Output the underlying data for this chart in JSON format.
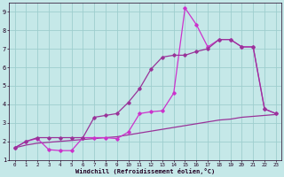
{
  "xlabel": "Windchill (Refroidissement éolien,°C)",
  "bg_color": "#c5e8e8",
  "grid_color": "#9ecece",
  "xlim": [
    -0.5,
    23.5
  ],
  "ylim": [
    1,
    9.5
  ],
  "xticks": [
    0,
    1,
    2,
    3,
    4,
    5,
    6,
    7,
    8,
    9,
    10,
    11,
    12,
    13,
    14,
    15,
    16,
    17,
    18,
    19,
    20,
    21,
    22,
    23
  ],
  "yticks": [
    1,
    2,
    3,
    4,
    5,
    6,
    7,
    8,
    9
  ],
  "line_bottom_x": [
    0,
    1,
    2,
    3,
    4,
    5,
    6,
    7,
    8,
    9,
    10,
    11,
    12,
    13,
    14,
    15,
    16,
    17,
    18,
    19,
    20,
    21,
    22,
    23
  ],
  "line_bottom_y": [
    1.65,
    1.8,
    1.9,
    1.95,
    2.0,
    2.05,
    2.1,
    2.15,
    2.2,
    2.25,
    2.35,
    2.45,
    2.55,
    2.65,
    2.75,
    2.85,
    2.95,
    3.05,
    3.15,
    3.2,
    3.3,
    3.35,
    3.4,
    3.45
  ],
  "line_mid_x": [
    0,
    1,
    2,
    3,
    4,
    5,
    6,
    7,
    8,
    9,
    10,
    11,
    12,
    13,
    14,
    15,
    16,
    17,
    18,
    19,
    20,
    21,
    22,
    23
  ],
  "line_mid_y": [
    1.65,
    2.0,
    2.15,
    1.55,
    1.5,
    1.5,
    2.2,
    2.2,
    2.2,
    2.15,
    2.5,
    3.5,
    3.6,
    3.65,
    4.6,
    9.2,
    8.3,
    7.1,
    7.5,
    7.5,
    7.1,
    7.1,
    3.75,
    3.5
  ],
  "line_top_x": [
    0,
    1,
    2,
    3,
    4,
    5,
    6,
    7,
    8,
    9,
    10,
    11,
    12,
    13,
    14,
    15,
    16,
    17,
    18,
    19,
    20,
    21,
    22,
    23
  ],
  "line_top_y": [
    1.65,
    2.0,
    2.2,
    2.2,
    2.2,
    2.2,
    2.2,
    3.3,
    3.4,
    3.5,
    4.1,
    4.85,
    5.9,
    6.55,
    6.65,
    6.65,
    6.85,
    7.0,
    7.5,
    7.5,
    7.1,
    7.1,
    3.75,
    3.5
  ],
  "color_dark": "#993399",
  "color_bright": "#cc33cc",
  "marker": "D",
  "markersize": 1.8,
  "linewidth": 0.9
}
